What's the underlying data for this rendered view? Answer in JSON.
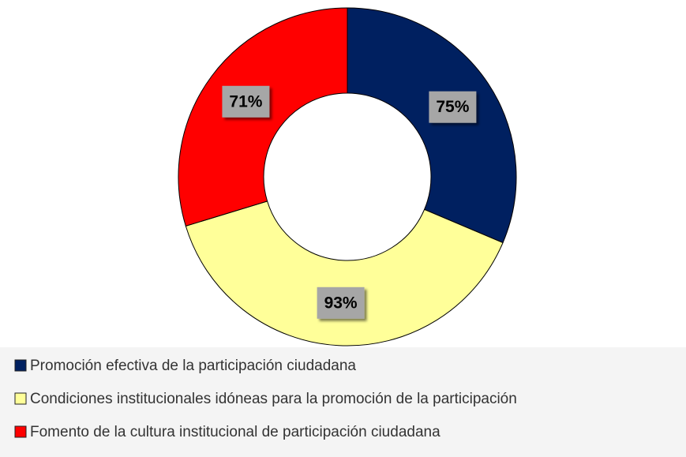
{
  "chart_data": {
    "type": "donut",
    "categories": [
      "Promoción efectiva de la participación ciudadana",
      "Condiciones institucionales idóneas para la promoción de la participación",
      "Fomento de la cultura institucional de participación ciudadana"
    ],
    "values": [
      75,
      93,
      71
    ],
    "value_labels": [
      "75%",
      "93%",
      "71%"
    ],
    "colors": [
      "#002060",
      "#ffff99",
      "#ff0000"
    ],
    "legend": "bottom"
  }
}
